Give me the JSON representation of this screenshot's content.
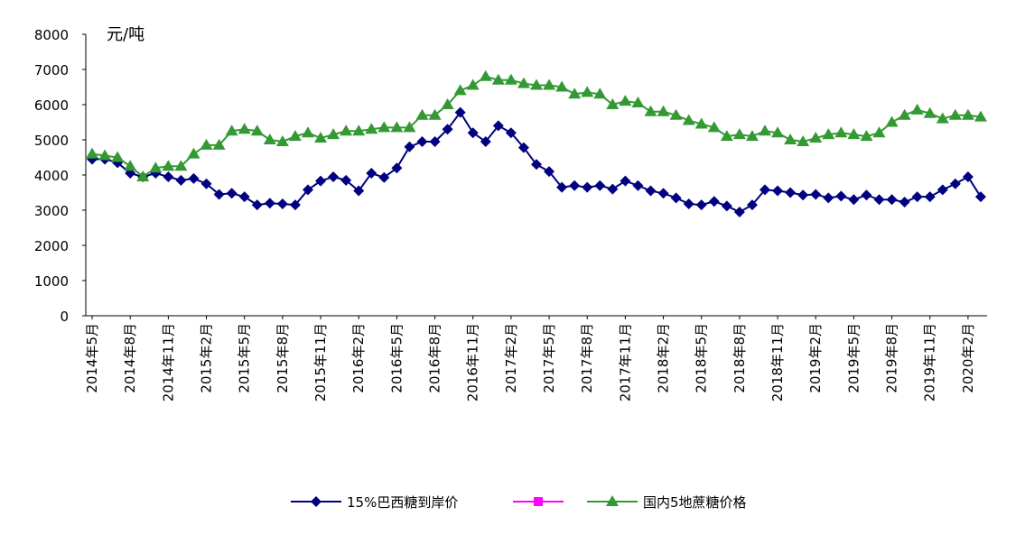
{
  "chart_data": {
    "type": "line",
    "y_label": "元/吨",
    "categories": [
      "2014年5月",
      null,
      null,
      "2014年8月",
      null,
      null,
      "2014年11月",
      null,
      null,
      "2015年2月",
      null,
      null,
      "2015年5月",
      null,
      null,
      "2015年8月",
      null,
      null,
      "2015年11月",
      null,
      null,
      "2016年2月",
      null,
      null,
      "2016年5月",
      null,
      null,
      "2016年8月",
      null,
      null,
      "2016年11月",
      null,
      null,
      "2017年2月",
      null,
      null,
      "2017年5月",
      null,
      null,
      "2017年8月",
      null,
      null,
      "2017年11月",
      null,
      null,
      "2018年2月",
      null,
      null,
      "2018年5月",
      null,
      null,
      "2018年8月",
      null,
      null,
      "2018年11月",
      null,
      null,
      "2019年2月",
      null,
      null,
      "2019年5月",
      null,
      null,
      "2019年8月",
      null,
      null,
      "2019年11月",
      null,
      null,
      "2020年2月",
      null
    ],
    "series": [
      {
        "name": "15%巴西糖到岸价",
        "color": "#000080",
        "marker": "diamond",
        "values": [
          4450,
          4450,
          4350,
          4050,
          3950,
          4050,
          3950,
          3850,
          3900,
          3750,
          3450,
          3480,
          3380,
          3150,
          3200,
          3180,
          3150,
          3580,
          3830,
          3950,
          3850,
          3550,
          4050,
          3930,
          4200,
          4800,
          4950,
          4950,
          5300,
          5780,
          5200,
          4950,
          5400,
          5200,
          4780,
          4300,
          4100,
          3650,
          3700,
          3650,
          3700,
          3600,
          3830,
          3700,
          3550,
          3480,
          3350,
          3180,
          3150,
          3250,
          3120,
          2950,
          3150,
          3580,
          3550,
          3500,
          3430,
          3450,
          3350,
          3400,
          3300,
          3430,
          3300,
          3300,
          3230,
          3380,
          3380,
          3580,
          3750,
          3950,
          3380
        ]
      },
      {
        "name": null,
        "color": "#ff00ff",
        "marker": "square",
        "values": [
          null,
          null,
          null,
          null,
          null,
          null,
          null,
          null,
          null,
          null,
          null,
          null,
          null,
          null,
          null,
          null,
          null,
          null,
          null,
          null,
          null,
          null,
          null,
          null,
          null,
          null,
          null,
          null,
          null,
          null,
          null,
          null,
          null,
          null,
          null,
          null,
          null,
          null,
          null,
          null,
          null,
          null,
          null,
          null,
          null,
          null,
          null,
          null,
          null,
          null,
          null,
          null,
          null,
          null,
          null,
          null,
          null,
          null,
          null,
          null,
          null,
          null,
          null,
          null,
          null,
          null,
          null,
          null,
          null,
          null,
          null
        ]
      },
      {
        "name": "国内5地蔗糖价格",
        "color": "#339933",
        "marker": "triangle",
        "values": [
          4600,
          4550,
          4500,
          4250,
          3950,
          4200,
          4250,
          4250,
          4600,
          4850,
          4850,
          5250,
          5300,
          5250,
          5000,
          4950,
          5100,
          5200,
          5050,
          5150,
          5250,
          5250,
          5300,
          5350,
          5350,
          5350,
          5700,
          5700,
          6000,
          6400,
          6550,
          6800,
          6700,
          6700,
          6600,
          6550,
          6550,
          6500,
          6300,
          6350,
          6300,
          6000,
          6100,
          6050,
          5800,
          5800,
          5700,
          5550,
          5450,
          5350,
          5100,
          5150,
          5100,
          5250,
          5200,
          5000,
          4950,
          5050,
          5150,
          5200,
          5150,
          5100,
          5200,
          5500,
          5700,
          5850,
          5750,
          5600,
          5700,
          5700,
          5650
        ]
      }
    ],
    "ylim": [
      0,
      8000
    ],
    "yticks": [
      0,
      1000,
      2000,
      3000,
      4000,
      5000,
      6000,
      7000,
      8000
    ],
    "legend": "bottom"
  }
}
